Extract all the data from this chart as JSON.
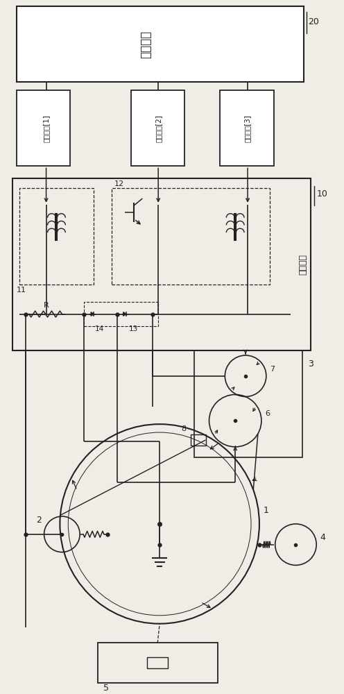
{
  "bg_color": "#f0ece6",
  "line_color": "#222222",
  "labels": {
    "control_unit": "控制单元",
    "high_voltage": "高压电源",
    "ctrl1": "控制信号[1]",
    "ctrl2": "控制信号[2]",
    "ctrl3": "控制信号[3]",
    "num20": "20",
    "num10": "10",
    "num11": "11",
    "num12": "12",
    "num13": "13",
    "num14": "14",
    "num1": "1",
    "num2": "2",
    "num3": "3",
    "num4": "4",
    "num5": "5",
    "num6": "6",
    "num7": "7",
    "num8": "8",
    "R": "R"
  }
}
